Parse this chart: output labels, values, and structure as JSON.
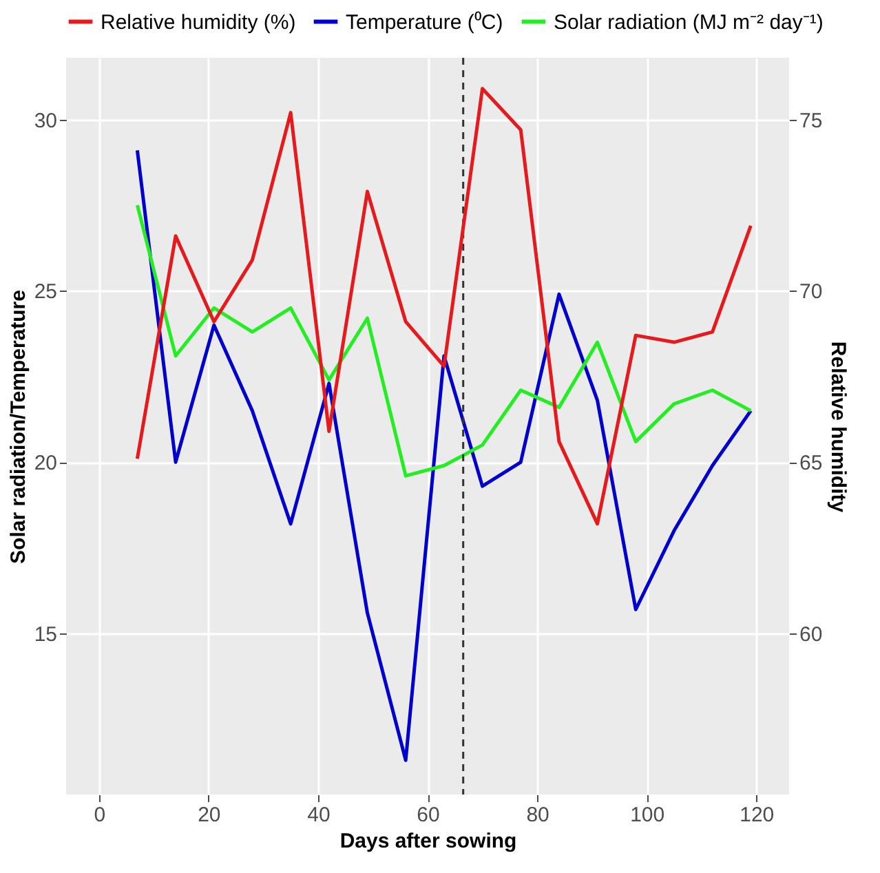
{
  "chart_data": {
    "type": "line",
    "xlabel": "Days after sowing",
    "ylabel": "Solar radiation/Temperature",
    "y2label": "Relative humidity",
    "x": [
      7,
      14,
      21,
      28,
      35,
      42,
      49,
      56,
      63,
      70,
      77,
      84,
      91,
      98,
      105,
      112,
      119
    ],
    "series": [
      {
        "name": "Relative humidity (%)",
        "color": "#e41a1c",
        "axis": "y2",
        "values": [
          65.1,
          71.6,
          69.1,
          70.9,
          75.2,
          65.9,
          72.9,
          69.1,
          67.8,
          75.9,
          74.7,
          65.6,
          63.2,
          68.7,
          68.5,
          68.8,
          71.9
        ]
      },
      {
        "name": "Temperature (⁰C)",
        "color": "#0000cc",
        "values": [
          29.1,
          20.0,
          24.0,
          21.5,
          18.2,
          22.3,
          15.6,
          11.3,
          23.1,
          19.3,
          20.0,
          24.9,
          21.8,
          15.7,
          18.0,
          19.9,
          21.5
        ]
      },
      {
        "name": "Solar radiation (MJ m⁻² day⁻¹)",
        "color": "#22ee22",
        "values": [
          27.5,
          23.1,
          24.5,
          23.8,
          24.5,
          22.4,
          24.2,
          19.6,
          19.9,
          20.5,
          22.1,
          21.6,
          23.5,
          20.6,
          21.7,
          22.1,
          21.5
        ]
      }
    ],
    "xlim": [
      -6,
      126
    ],
    "xticks": [
      0,
      20,
      40,
      60,
      80,
      100,
      120
    ],
    "ylim": [
      10.3,
      31.8
    ],
    "yticks": [
      15,
      20,
      25,
      30
    ],
    "y2lim": [
      55.3,
      76.8
    ],
    "y2ticks": [
      60,
      65,
      70,
      75
    ],
    "ref_lines": [
      {
        "axis": "x",
        "value": 66.5,
        "color": "#333333",
        "line_style": "dashed"
      }
    ],
    "grid": true,
    "legend": "top",
    "line_style": "solid",
    "marker": "none"
  }
}
